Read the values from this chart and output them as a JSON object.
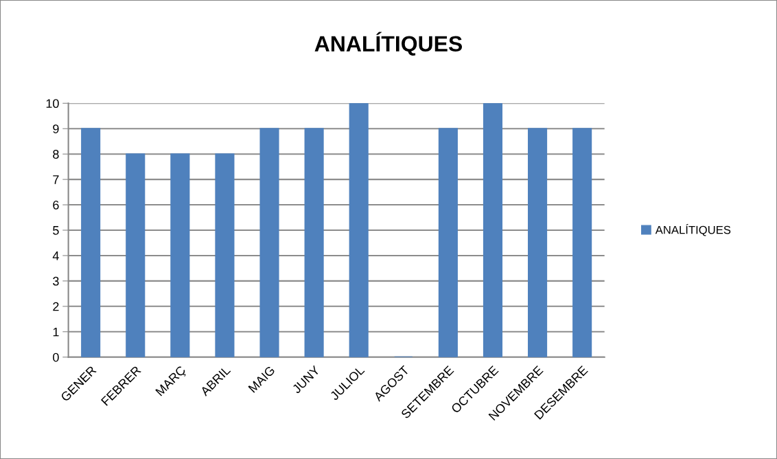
{
  "chart_data": {
    "type": "bar",
    "title": "ANALÍTIQUES",
    "categories": [
      "GENER",
      "FEBRER",
      "MARÇ",
      "ABRIL",
      "MAIG",
      "JUNY",
      "JULIOL",
      "AGOST",
      "SETEMBRE",
      "OCTUBRE",
      "NOVEMBRE",
      "DESEMBRE"
    ],
    "series": [
      {
        "name": "ANALÍTIQUES",
        "color": "#4f81bd",
        "values": [
          9,
          8,
          8,
          8,
          9,
          9,
          10,
          0,
          9,
          10,
          9,
          9
        ]
      }
    ],
    "ylim": [
      0,
      10
    ],
    "yticks": [
      0,
      1,
      2,
      3,
      4,
      5,
      6,
      7,
      8,
      9,
      10
    ],
    "grid": "y",
    "legend": "right"
  }
}
